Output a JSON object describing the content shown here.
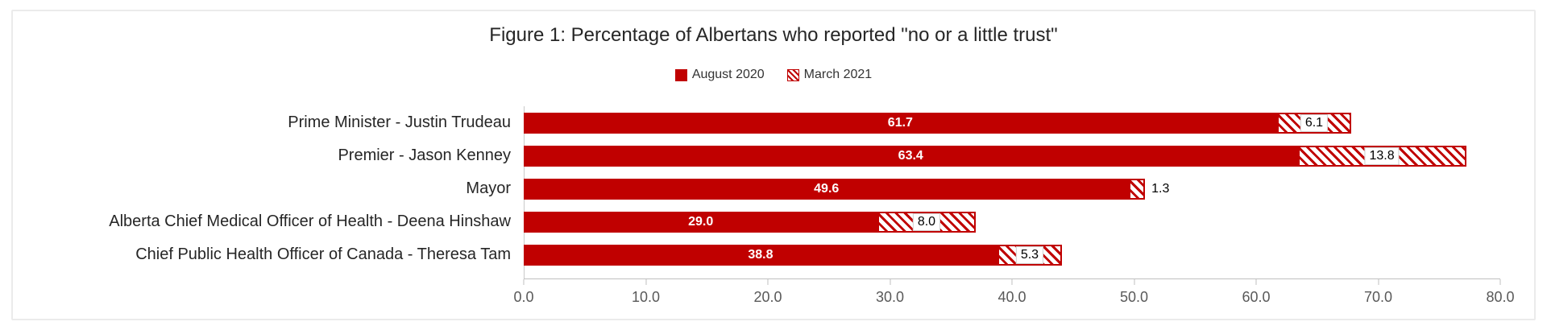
{
  "chart_data": {
    "type": "bar",
    "orientation": "horizontal",
    "stacked": true,
    "grid": false,
    "title": "Figure 1: Percentage of Albertans who reported \"no or a little trust\"",
    "categories": [
      "Prime Minister - Justin Trudeau",
      "Premier - Jason Kenney",
      "Mayor",
      "Alberta Chief Medical Officer of Health - Deena Hinshaw",
      "Chief Public Health Officer of Canada - Theresa Tam"
    ],
    "series": [
      {
        "name": "August 2020",
        "style": "solid",
        "color": "#c00000",
        "values": [
          61.7,
          63.4,
          49.6,
          29.0,
          38.8
        ],
        "labels": [
          "61.7",
          "63.4",
          "49.6",
          "29.0",
          "38.8"
        ]
      },
      {
        "name": "March 2021",
        "style": "hatched",
        "color": "#c00000",
        "values": [
          6.1,
          13.8,
          1.3,
          8.0,
          5.3
        ],
        "labels": [
          "6.1",
          "13.8",
          "1.3",
          "8.0",
          "5.3"
        ]
      }
    ],
    "xlim": [
      0,
      80
    ],
    "x_ticks": [
      "0.0",
      "10.0",
      "20.0",
      "30.0",
      "40.0",
      "50.0",
      "60.0",
      "70.0",
      "80.0"
    ],
    "legend_position": "top"
  }
}
